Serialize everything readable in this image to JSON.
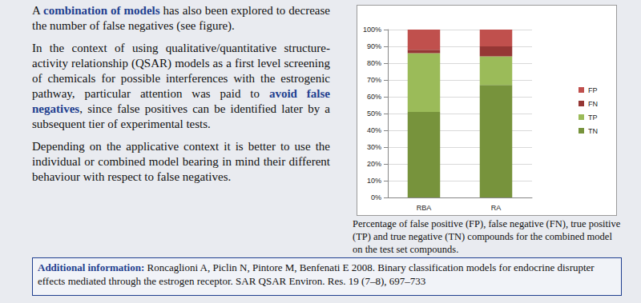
{
  "paragraphs": [
    [
      {
        "text": "A "
      },
      {
        "text": "combination of models",
        "highlight": true
      },
      {
        "text": " has also been explored to decrease the number of false negatives (see figure)."
      }
    ],
    [
      {
        "text": "In the context of using qualitative/quantitative structure-activity relationship (QSAR) models as a first level screening of chemicals for possible interferences with the estrogenic pathway, particular attention was paid to "
      },
      {
        "text": "avoid false negatives",
        "highlight": true
      },
      {
        "text": ", since false positives can be identified later by a subsequent tier of experimental tests."
      }
    ],
    [
      {
        "text": "Depending on the applicative context it is better to use the individual or combined model bearing in mind their different behaviour with respect to false negatives."
      }
    ]
  ],
  "chart_data": {
    "type": "bar",
    "stacked": true,
    "grid": true,
    "legend": "right",
    "categories": [
      "RBA",
      "RA"
    ],
    "series": [
      {
        "name": "TN",
        "color": "#77933c",
        "values": [
          51,
          67
        ]
      },
      {
        "name": "TP",
        "color": "#9bbb59",
        "values": [
          35,
          17
        ]
      },
      {
        "name": "FN",
        "color": "#953735",
        "values": [
          2,
          6
        ]
      },
      {
        "name": "FP",
        "color": "#c0504d",
        "values": [
          12,
          10
        ]
      }
    ],
    "ylim": [
      0,
      100
    ],
    "yticks": [
      {
        "value": 0,
        "label": "0%"
      },
      {
        "value": 10,
        "label": "10%"
      },
      {
        "value": 20,
        "label": "20%"
      },
      {
        "value": 30,
        "label": "30%"
      },
      {
        "value": 40,
        "label": "40%"
      },
      {
        "value": 50,
        "label": "50%"
      },
      {
        "value": 60,
        "label": "60%"
      },
      {
        "value": 70,
        "label": "70%"
      },
      {
        "value": 80,
        "label": "80%"
      },
      {
        "value": 90,
        "label": "90%"
      },
      {
        "value": 100,
        "label": "100%"
      }
    ]
  },
  "caption": "Percentage of false positive (FP), false negative (FN), true positive (TP) and true negative (TN) compounds for the combined model on the test set compounds.",
  "additional_information": {
    "label": "Additional information:",
    "text": "Roncaglioni A, Piclin N, Pintore M, Benfenati E 2008. Binary classification models for endocrine disrupter effects mediated through the estrogen receptor. SAR QSAR Environ. Res. 19 (7–8), 697–733"
  }
}
